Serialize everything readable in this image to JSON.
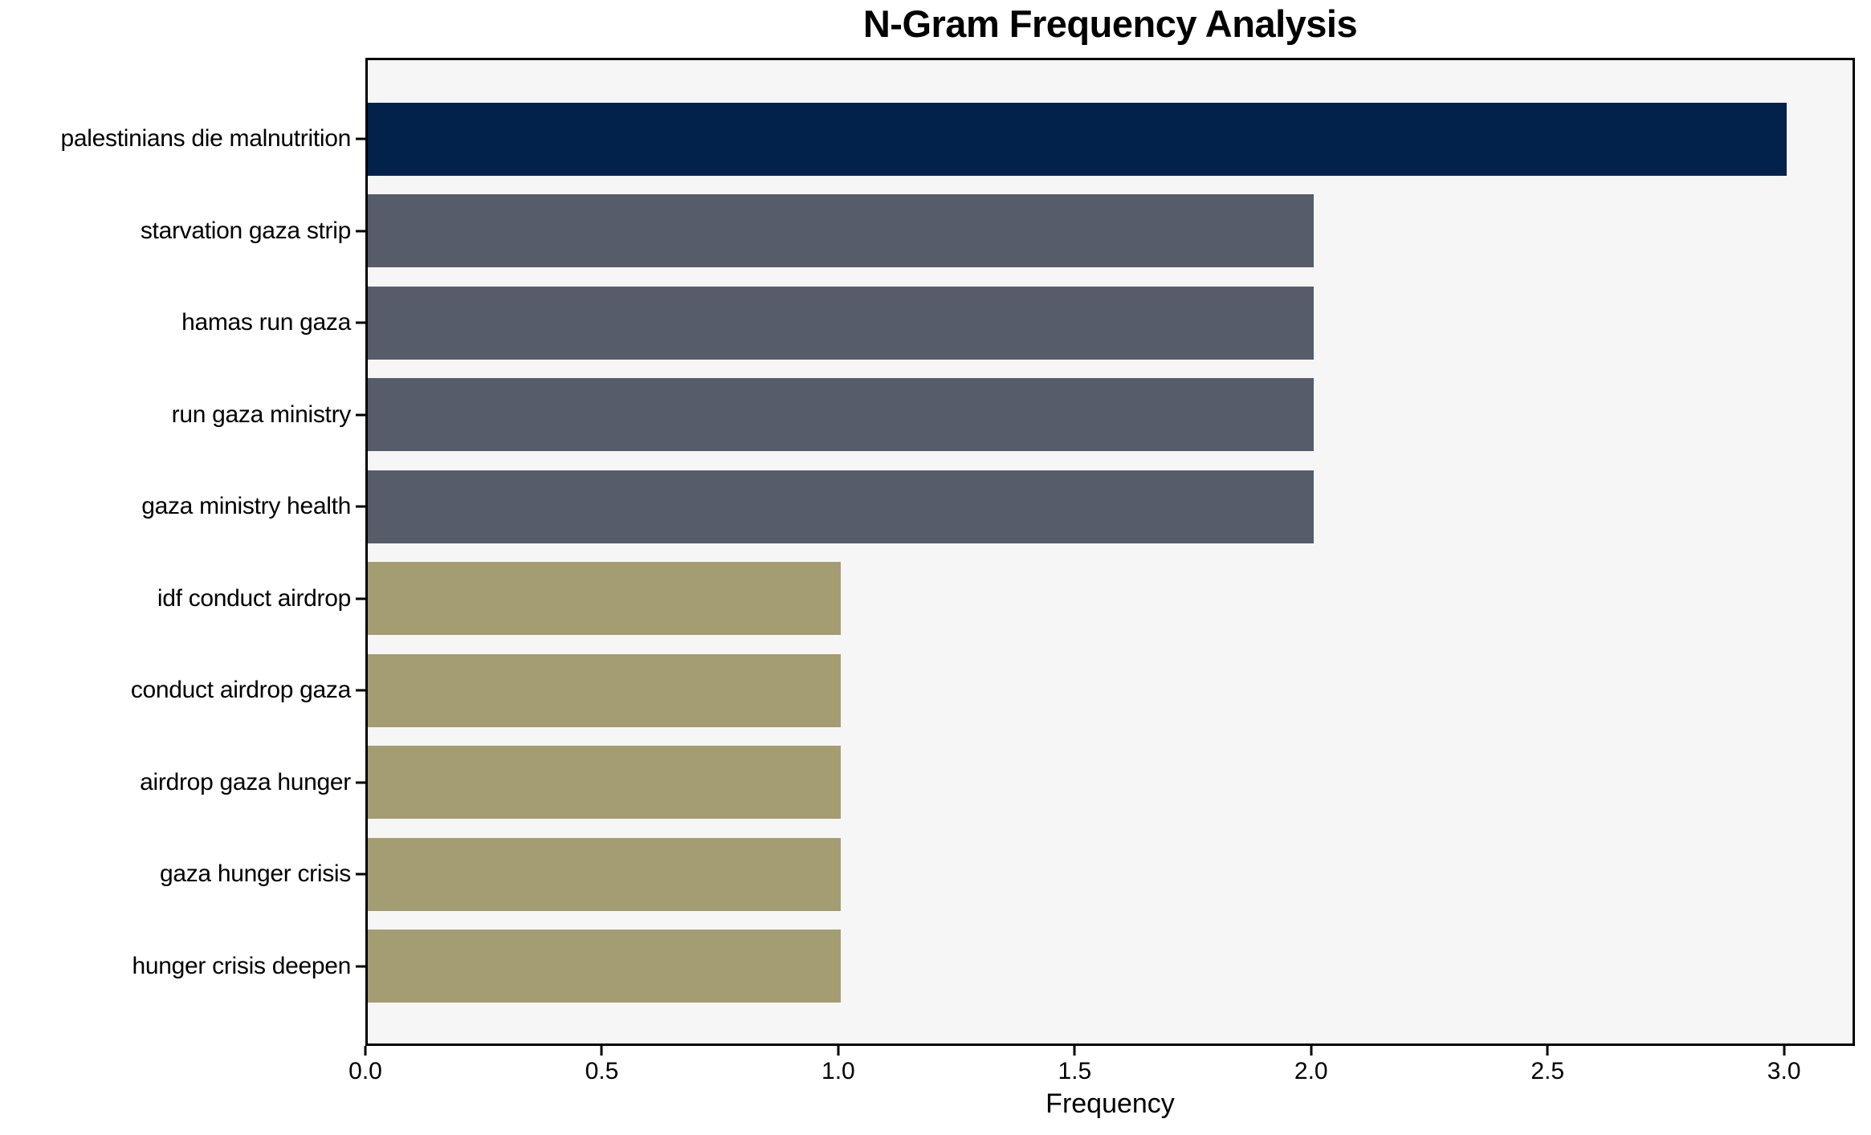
{
  "chart_data": {
    "type": "bar",
    "orientation": "horizontal",
    "title": "N-Gram Frequency Analysis",
    "xlabel": "Frequency",
    "ylabel": "",
    "categories": [
      "palestinians die malnutrition",
      "starvation gaza strip",
      "hamas run gaza",
      "run gaza ministry",
      "gaza ministry health",
      "idf conduct airdrop",
      "conduct airdrop gaza",
      "airdrop gaza hunger",
      "gaza hunger crisis",
      "hunger crisis deepen"
    ],
    "values": [
      3,
      2,
      2,
      2,
      2,
      1,
      1,
      1,
      1,
      1
    ],
    "bar_colors": [
      "#02224c",
      "#575c6a",
      "#575c6a",
      "#575c6a",
      "#575c6a",
      "#a49d72",
      "#a49d72",
      "#a49d72",
      "#a49d72",
      "#a49d72"
    ],
    "x_ticks": [
      "0.0",
      "0.5",
      "1.0",
      "1.5",
      "2.0",
      "2.5",
      "3.0"
    ],
    "x_tick_values": [
      0.0,
      0.5,
      1.0,
      1.5,
      2.0,
      2.5,
      3.0
    ],
    "xlim": [
      0,
      3.15
    ],
    "grid": false,
    "legend": "none",
    "colors": {
      "figure_bg": "#ffffff",
      "plot_bg": "#f7f6f7",
      "axis": "#000000",
      "text": "#000000"
    }
  }
}
